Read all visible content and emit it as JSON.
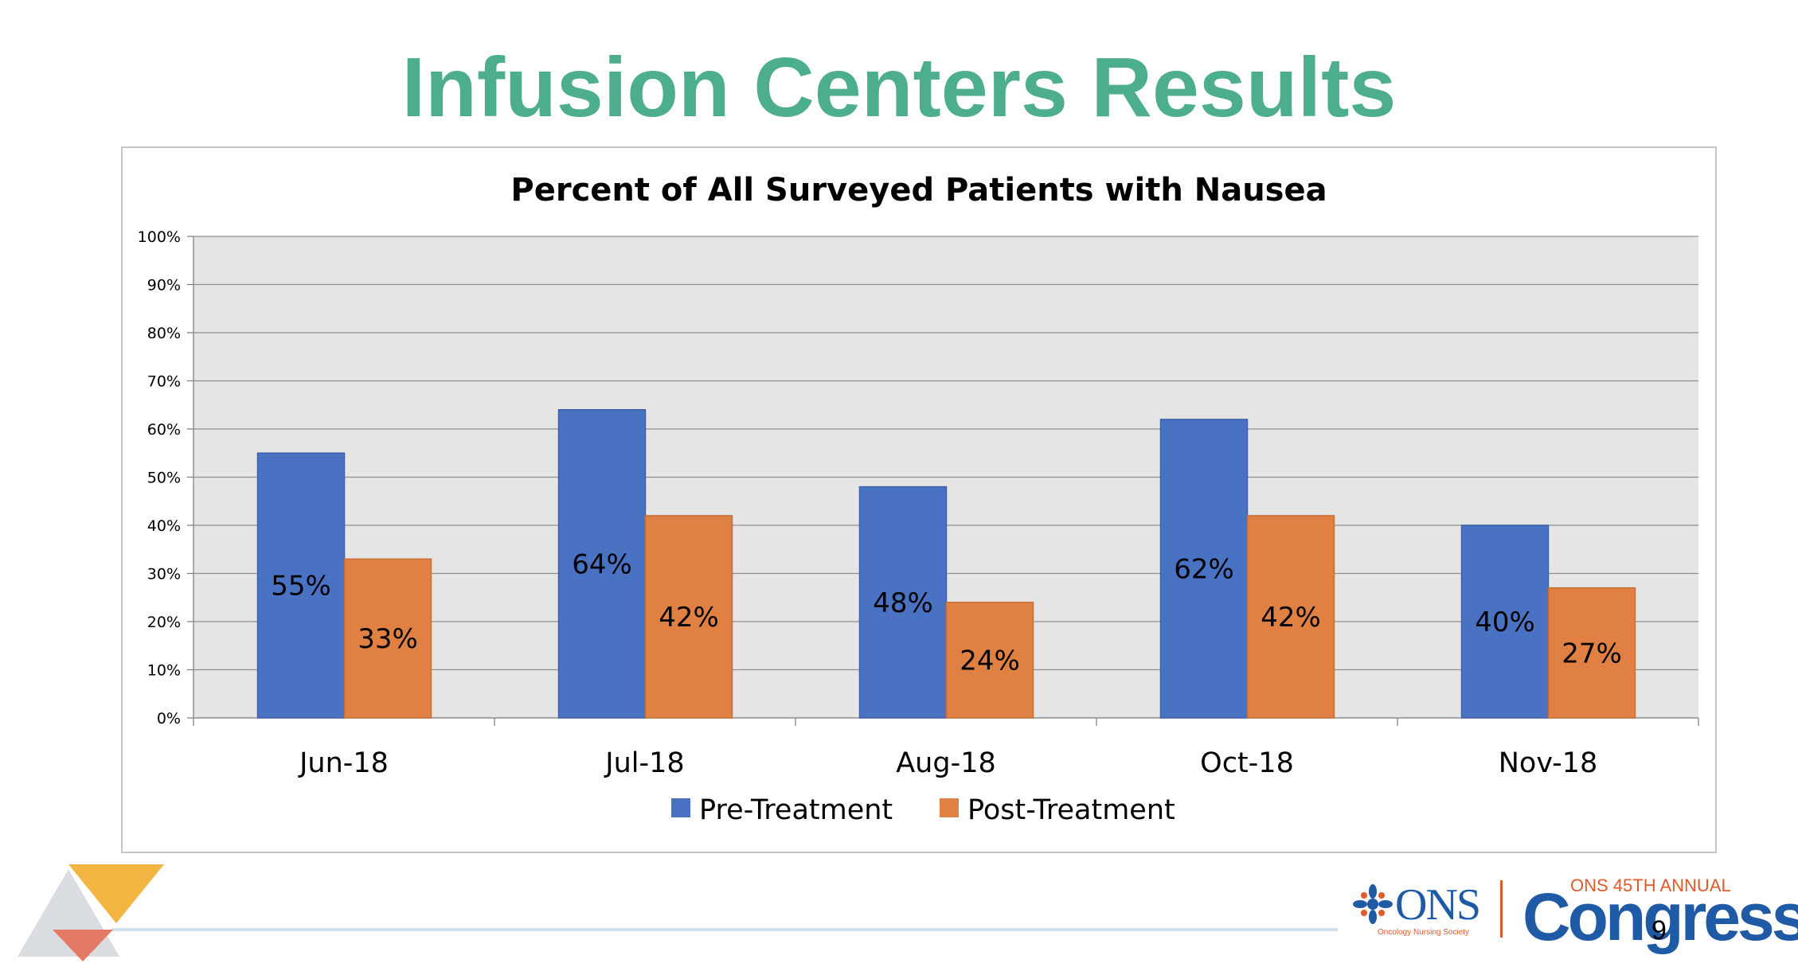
{
  "slide": {
    "title": "Infusion Centers Results",
    "page_number": "9"
  },
  "branding": {
    "ons_name": "ONS",
    "ons_subtitle": "Oncology Nursing Society",
    "congress_small": "ONS 45TH ANNUAL",
    "congress_big": "Congress"
  },
  "colors": {
    "title": "#4cae8a",
    "pre_treatment": "#4a72c2",
    "post_treatment": "#e08042",
    "plot_background": "#e5e5e5",
    "gridline": "#8f8f8f"
  },
  "chart_data": {
    "type": "bar",
    "title": "Percent of All Surveyed Patients with Nausea",
    "categories": [
      "Jun-18",
      "Jul-18",
      "Aug-18",
      "Oct-18",
      "Nov-18"
    ],
    "series": [
      {
        "name": "Pre-Treatment",
        "values": [
          55,
          64,
          48,
          62,
          40
        ],
        "labels": [
          "55%",
          "64%",
          "48%",
          "62%",
          "40%"
        ]
      },
      {
        "name": "Post-Treatment",
        "values": [
          33,
          42,
          24,
          42,
          27
        ],
        "labels": [
          "33%",
          "42%",
          "24%",
          "42%",
          "27%"
        ]
      }
    ],
    "ylim": [
      0,
      100
    ],
    "yticks": [
      "0%",
      "10%",
      "20%",
      "30%",
      "40%",
      "50%",
      "60%",
      "70%",
      "80%",
      "90%",
      "100%"
    ],
    "grid": true,
    "legend_position": "bottom",
    "xlabel": "",
    "ylabel": ""
  }
}
